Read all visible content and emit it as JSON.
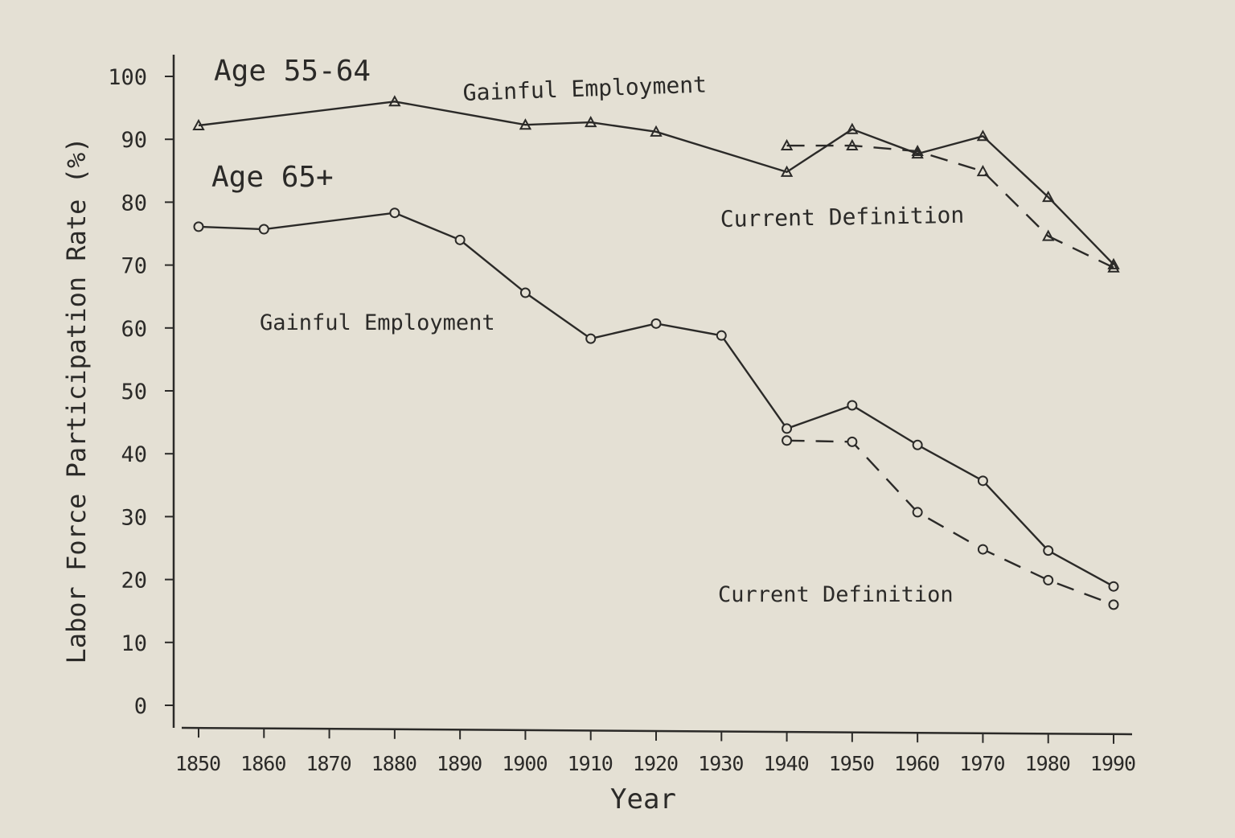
{
  "chart_data": {
    "type": "line",
    "xlabel": "Year",
    "ylabel": "Labor Force Participation Rate (%)",
    "xlim": [
      1850,
      1990
    ],
    "ylim": [
      0,
      100
    ],
    "x_ticks": [
      1850,
      1860,
      1870,
      1880,
      1890,
      1900,
      1910,
      1920,
      1930,
      1940,
      1950,
      1960,
      1970,
      1980,
      1990
    ],
    "y_ticks": [
      0,
      10,
      20,
      30,
      40,
      50,
      60,
      70,
      80,
      90,
      100
    ],
    "grid": false,
    "annotations": {
      "age_55_64": "Age 55-64",
      "age_65": "Age 65+",
      "gainful_55_64": "Gainful Employment",
      "current_55_64": "Current Definition",
      "gainful_65": "Gainful Employment",
      "current_65": "Current Definition"
    },
    "series": [
      {
        "group": "Age 55-64",
        "definition": "Gainful Employment",
        "style": "solid",
        "marker": "triangle",
        "x": [
          1850,
          1880,
          1900,
          1910,
          1920,
          1940,
          1950,
          1960,
          1970,
          1980,
          1990
        ],
        "y": [
          92.2,
          96.0,
          92.3,
          92.7,
          91.2,
          84.8,
          91.6,
          87.7,
          90.5,
          80.8,
          70.1
        ]
      },
      {
        "group": "Age 55-64",
        "definition": "Current Definition",
        "style": "dashed",
        "marker": "triangle",
        "x": [
          1940,
          1950,
          1960,
          1970,
          1980,
          1990
        ],
        "y": [
          89.0,
          89.0,
          88.1,
          84.9,
          74.6,
          69.6
        ]
      },
      {
        "group": "Age 65+",
        "definition": "Gainful Employment",
        "style": "solid",
        "marker": "circle",
        "x": [
          1850,
          1860,
          1880,
          1890,
          1900,
          1910,
          1920,
          1930,
          1940,
          1950,
          1960,
          1970,
          1980,
          1990
        ],
        "y": [
          76.1,
          75.7,
          78.3,
          74.0,
          65.6,
          58.3,
          60.7,
          58.8,
          44.0,
          47.7,
          41.4,
          35.7,
          24.6,
          18.9
        ]
      },
      {
        "group": "Age 65+",
        "definition": "Current Definition",
        "style": "dashed",
        "marker": "circle",
        "x": [
          1940,
          1950,
          1960,
          1970,
          1980,
          1990
        ],
        "y": [
          42.1,
          41.9,
          30.7,
          24.8,
          19.9,
          16.0
        ]
      }
    ],
    "colors": {
      "background": "#e4e0d4",
      "ink": "#2b2a28"
    }
  }
}
